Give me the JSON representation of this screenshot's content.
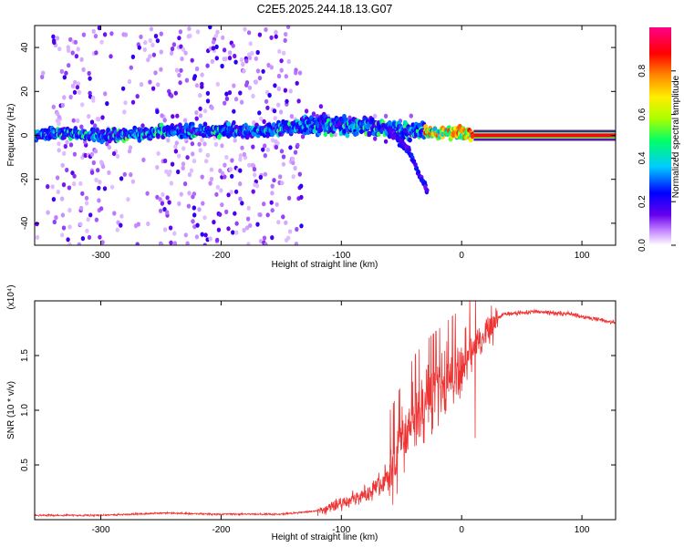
{
  "figure": {
    "title": "C2E5.2025.244.18.13.G07"
  },
  "chart_data": [
    {
      "type": "heatmap",
      "name": "spectrogram",
      "xlabel": "Height of straight line (km)",
      "ylabel": "Frequency (Hz)",
      "xlim": [
        -355,
        128
      ],
      "ylim": [
        -50,
        50
      ],
      "xticks": [
        -300,
        -200,
        -100,
        0,
        100
      ],
      "xtick_labels": [
        "-300",
        "-200",
        "-100",
        "0",
        "100"
      ],
      "yticks": [
        -40,
        -20,
        0,
        20,
        40
      ],
      "ytick_labels": [
        "-40",
        "-20",
        "0",
        "20",
        "40"
      ],
      "colorbar": {
        "label": "Normalized spectral amplitude",
        "range": [
          0,
          1
        ],
        "ticks": [
          0.0,
          0.2,
          0.4,
          0.6,
          0.8
        ],
        "tick_labels": [
          "0.0",
          "0.2",
          "0.4",
          "0.6",
          "0.8"
        ],
        "colors": [
          "#ffffff",
          "#c080ff",
          "#6600ee",
          "#0000ff",
          "#00ccff",
          "#00ff66",
          "#aaff00",
          "#ffee00",
          "#ff8800",
          "#ff0000",
          "#ff0088"
        ]
      },
      "ridge": [
        {
          "x": -355,
          "y": 0
        },
        {
          "x": -330,
          "y": 1
        },
        {
          "x": -310,
          "y": 0
        },
        {
          "x": -280,
          "y": 0
        },
        {
          "x": -250,
          "y": 2
        },
        {
          "x": -220,
          "y": 2
        },
        {
          "x": -180,
          "y": 2
        },
        {
          "x": -150,
          "y": 3
        },
        {
          "x": -138,
          "y": 4
        },
        {
          "x": -120,
          "y": 5
        },
        {
          "x": -100,
          "y": 5
        },
        {
          "x": -80,
          "y": 4
        },
        {
          "x": -60,
          "y": 3
        },
        {
          "x": -40,
          "y": 2
        },
        {
          "x": -20,
          "y": 1
        },
        {
          "x": 0,
          "y": 1
        },
        {
          "x": 10,
          "y": 0
        },
        {
          "x": 128,
          "y": 0
        }
      ],
      "branch": [
        {
          "x": -60,
          "y": 2
        },
        {
          "x": -45,
          "y": -6
        },
        {
          "x": -35,
          "y": -18
        },
        {
          "x": -28,
          "y": -26
        }
      ],
      "carrier": {
        "x_start": 10,
        "x_end": 128,
        "y": 0
      }
    },
    {
      "type": "line",
      "name": "snr",
      "xlabel": "Height of straight line (km)",
      "ylabel": "SNR (10 * v/v)",
      "scale_label": "(x10⁴)",
      "xlim": [
        -355,
        128
      ],
      "ylim": [
        0,
        2.0
      ],
      "xticks": [
        -300,
        -200,
        -100,
        0,
        100
      ],
      "xtick_labels": [
        "-300",
        "-200",
        "-100",
        "0",
        "100"
      ],
      "yticks": [
        0.5,
        1.0,
        1.5
      ],
      "ytick_labels": [
        "0.5",
        "1.0",
        "1.5"
      ],
      "color": "#ee3333",
      "envelope": [
        {
          "x": -355,
          "y": 0.04
        },
        {
          "x": -300,
          "y": 0.04
        },
        {
          "x": -250,
          "y": 0.06
        },
        {
          "x": -200,
          "y": 0.05
        },
        {
          "x": -150,
          "y": 0.05
        },
        {
          "x": -120,
          "y": 0.08
        },
        {
          "x": -100,
          "y": 0.15
        },
        {
          "x": -80,
          "y": 0.22
        },
        {
          "x": -60,
          "y": 0.4
        },
        {
          "x": -50,
          "y": 0.65
        },
        {
          "x": -40,
          "y": 0.9
        },
        {
          "x": -30,
          "y": 1.05
        },
        {
          "x": -20,
          "y": 1.15
        },
        {
          "x": -10,
          "y": 1.25
        },
        {
          "x": 0,
          "y": 1.35
        },
        {
          "x": 8,
          "y": 1.55
        },
        {
          "x": 15,
          "y": 1.62
        },
        {
          "x": 25,
          "y": 1.8
        },
        {
          "x": 35,
          "y": 1.88
        },
        {
          "x": 60,
          "y": 1.9
        },
        {
          "x": 90,
          "y": 1.88
        },
        {
          "x": 128,
          "y": 1.8
        }
      ]
    }
  ]
}
